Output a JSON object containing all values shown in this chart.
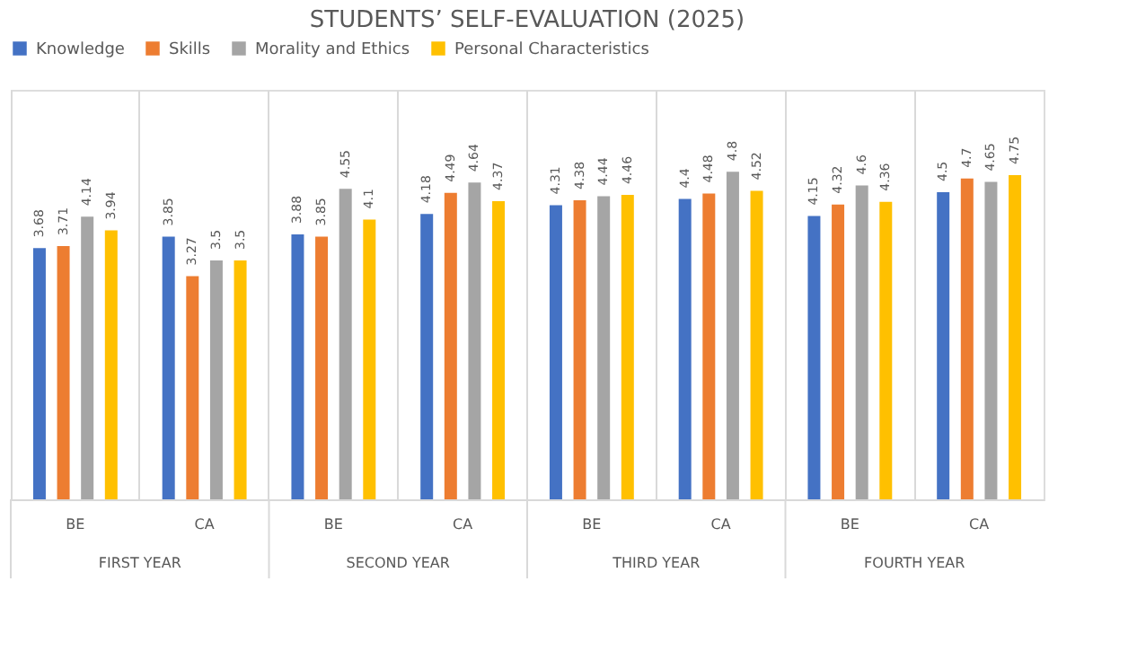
{
  "chart_data": {
    "type": "bar",
    "title": "STUDENTS’ SELF-EVALUATION (2025)",
    "categories": [
      "BE",
      "CA",
      "BE",
      "CA",
      "BE",
      "CA",
      "BE",
      "CA"
    ],
    "annotations": [
      "FIRST YEAR",
      "SECOND YEAR",
      "THIRD YEAR",
      "FOURTH YEAR"
    ],
    "series": [
      {
        "name": "Knowledge",
        "color": "#4472c4",
        "values": [
          3.68,
          3.85,
          3.88,
          4.18,
          4.31,
          4.4,
          4.15,
          4.5
        ]
      },
      {
        "name": "Skills",
        "color": "#ed7d31",
        "values": [
          3.71,
          3.27,
          3.85,
          4.49,
          4.38,
          4.48,
          4.32,
          4.7
        ]
      },
      {
        "name": "Morality and Ethics",
        "color": "#a5a5a5",
        "values": [
          4.14,
          3.5,
          4.55,
          4.64,
          4.44,
          4.8,
          4.6,
          4.65
        ]
      },
      {
        "name": "Personal Characteristics",
        "color": "#ffc000",
        "values": [
          3.94,
          3.5,
          4.1,
          4.37,
          4.46,
          4.52,
          4.36,
          4.75
        ]
      }
    ],
    "ylim": [
      0,
      6
    ],
    "tick_labels": "x",
    "data_labels": true,
    "grid": "x",
    "legend": "top"
  }
}
